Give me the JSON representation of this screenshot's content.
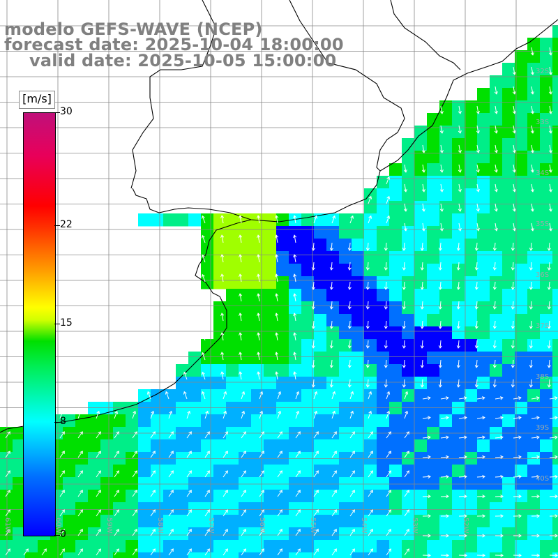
{
  "title": {
    "model": "modelo GEFS-WAVE (NCEP)",
    "forecast": "forecast date: 2025-10-04 18:00:00",
    "valid": "valid date: 2025-10-05 15:00:00"
  },
  "colorbar": {
    "units": "[m/s]",
    "ticks": [
      {
        "label": "30",
        "value": 30
      },
      {
        "label": "22",
        "value": 22
      },
      {
        "label": "15",
        "value": 15
      },
      {
        "label": "8",
        "value": 8
      },
      {
        "label": "0",
        "value": 0
      }
    ],
    "min": 0,
    "max": 30
  },
  "lat_labels": [
    "32S",
    "33S",
    "34S",
    "35S",
    "36S",
    "37S",
    "38S",
    "39S",
    "40S"
  ],
  "lon_labels": [
    "61W",
    "60W",
    "59W",
    "58W",
    "57W",
    "56W",
    "55W",
    "54W",
    "53W",
    "52W"
  ],
  "palette": {
    "blue": "#0000ff",
    "mid_blue": "#0070ff",
    "sky": "#00b0ff",
    "cyan": "#00ffff",
    "aqua_green": "#00ee88",
    "green": "#00e000",
    "yellow_green": "#a0ff00"
  }
}
